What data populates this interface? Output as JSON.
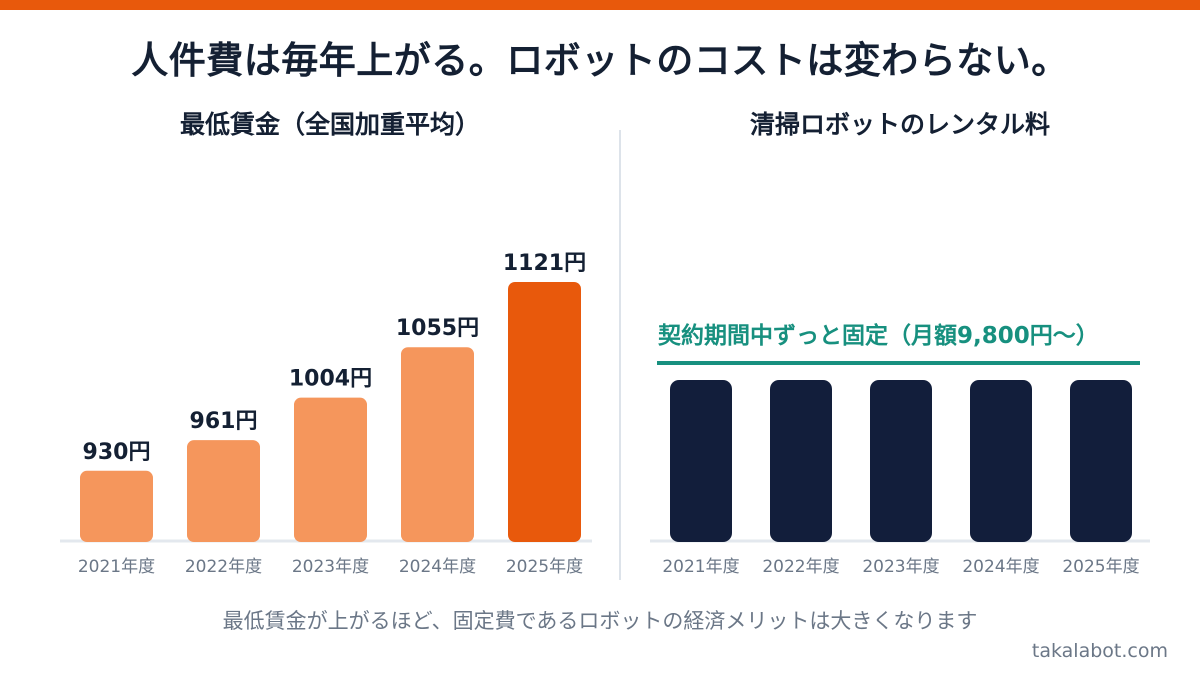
{
  "title": "人件費は毎年上がる。ロボットのコストは変わらない。",
  "chart_data": [
    {
      "type": "bar",
      "title": "最低賃金（全国加重平均）",
      "categories": [
        "2021年度",
        "2022年度",
        "2023年度",
        "2024年度",
        "2025年度"
      ],
      "values": [
        930,
        961,
        1004,
        1055,
        1121
      ],
      "value_labels": [
        "930円",
        "961円",
        "1004円",
        "1055円",
        "1121円"
      ],
      "colors": [
        "#f5965c",
        "#f5965c",
        "#f5965c",
        "#f5965c",
        "#e8590c"
      ]
    },
    {
      "type": "bar",
      "title": "清掃ロボットのレンタル料",
      "categories": [
        "2021年度",
        "2022年度",
        "2023年度",
        "2024年度",
        "2025年度"
      ],
      "values": [
        9800,
        9800,
        9800,
        9800,
        9800
      ],
      "annotation": "契約期間中ずっと固定（月額9,800円〜）",
      "bar_color": "#121e3b",
      "annotation_color": "#17907f"
    }
  ],
  "footer_note": "最低賃金が上がるほど、固定費であるロボットの経済メリットは大きくなります",
  "site": "takalabot.com",
  "colors": {
    "accent": "#e8590c",
    "accent_light": "#f5965c",
    "navy": "#121e3b",
    "teal": "#17907f",
    "text_dark": "#142033",
    "text_muted": "#6b7787"
  }
}
